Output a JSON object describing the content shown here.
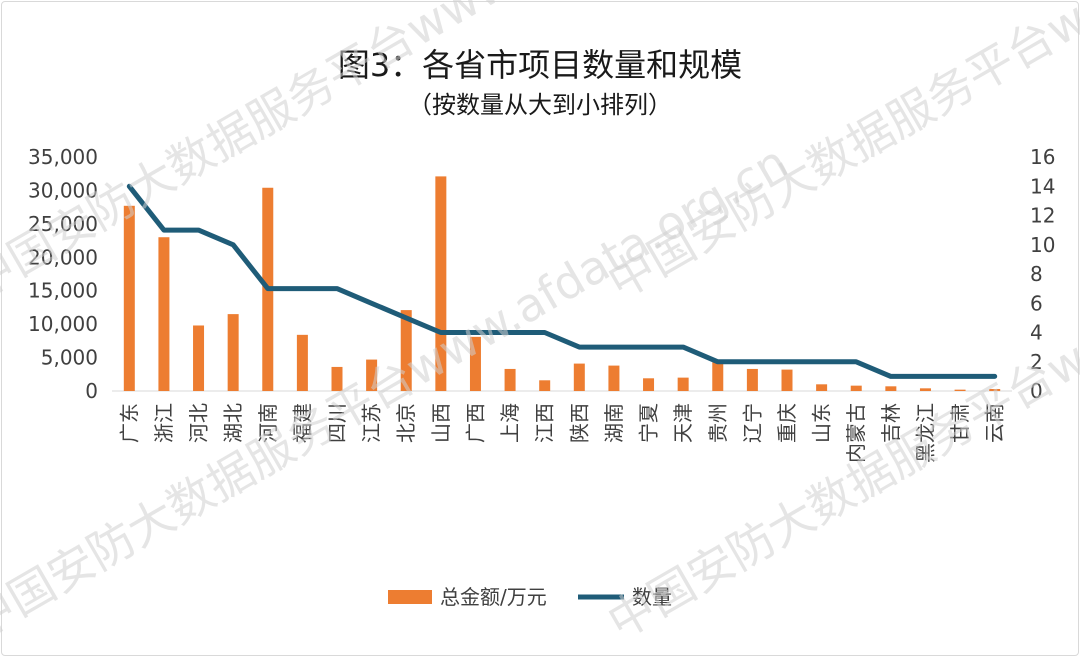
{
  "chart_data": {
    "type": "bar+line",
    "title": "图3：各省市项目数量和规模",
    "subtitle": "（按数量从大到小排列）",
    "categories": [
      "广东",
      "浙江",
      "河北",
      "湖北",
      "河南",
      "福建",
      "四川",
      "江苏",
      "北京",
      "山西",
      "广西",
      "上海",
      "江西",
      "陕西",
      "湖南",
      "宁夏",
      "天津",
      "贵州",
      "辽宁",
      "重庆",
      "山东",
      "内蒙古",
      "吉林",
      "黑龙江",
      "甘肃",
      "云南"
    ],
    "series": [
      {
        "name": "总金额/万元",
        "type": "bar",
        "axis": "left",
        "color": "#ED7D31",
        "values": [
          27700,
          23000,
          9800,
          11500,
          30400,
          8400,
          3600,
          4700,
          12100,
          32100,
          8100,
          3300,
          1600,
          4100,
          3800,
          1900,
          2000,
          4300,
          3300,
          3200,
          1000,
          800,
          700,
          400,
          200,
          300
        ]
      },
      {
        "name": "数量",
        "type": "line",
        "axis": "right",
        "color": "#1F5C78",
        "values": [
          14,
          11,
          11,
          10,
          7,
          7,
          7,
          6,
          5,
          4,
          4,
          4,
          4,
          3,
          3,
          3,
          3,
          2,
          2,
          2,
          2,
          2,
          1,
          1,
          1,
          1
        ]
      }
    ],
    "y_left": {
      "range": [
        0,
        35000
      ],
      "ticks": [
        0,
        5000,
        10000,
        15000,
        20000,
        25000,
        30000,
        35000
      ],
      "tick_labels": [
        "0",
        "5,000",
        "10,000",
        "15,000",
        "20,000",
        "25,000",
        "30,000",
        "35,000"
      ]
    },
    "y_right": {
      "range": [
        0,
        16
      ],
      "ticks": [
        0,
        2,
        4,
        6,
        8,
        10,
        12,
        14,
        16
      ],
      "tick_labels": [
        "0",
        "2",
        "4",
        "6",
        "8",
        "10",
        "12",
        "14",
        "16"
      ]
    },
    "grid": false,
    "legend_position": "bottom"
  },
  "watermark": "中国安防大数据服务平台www.afdata.org.cn"
}
